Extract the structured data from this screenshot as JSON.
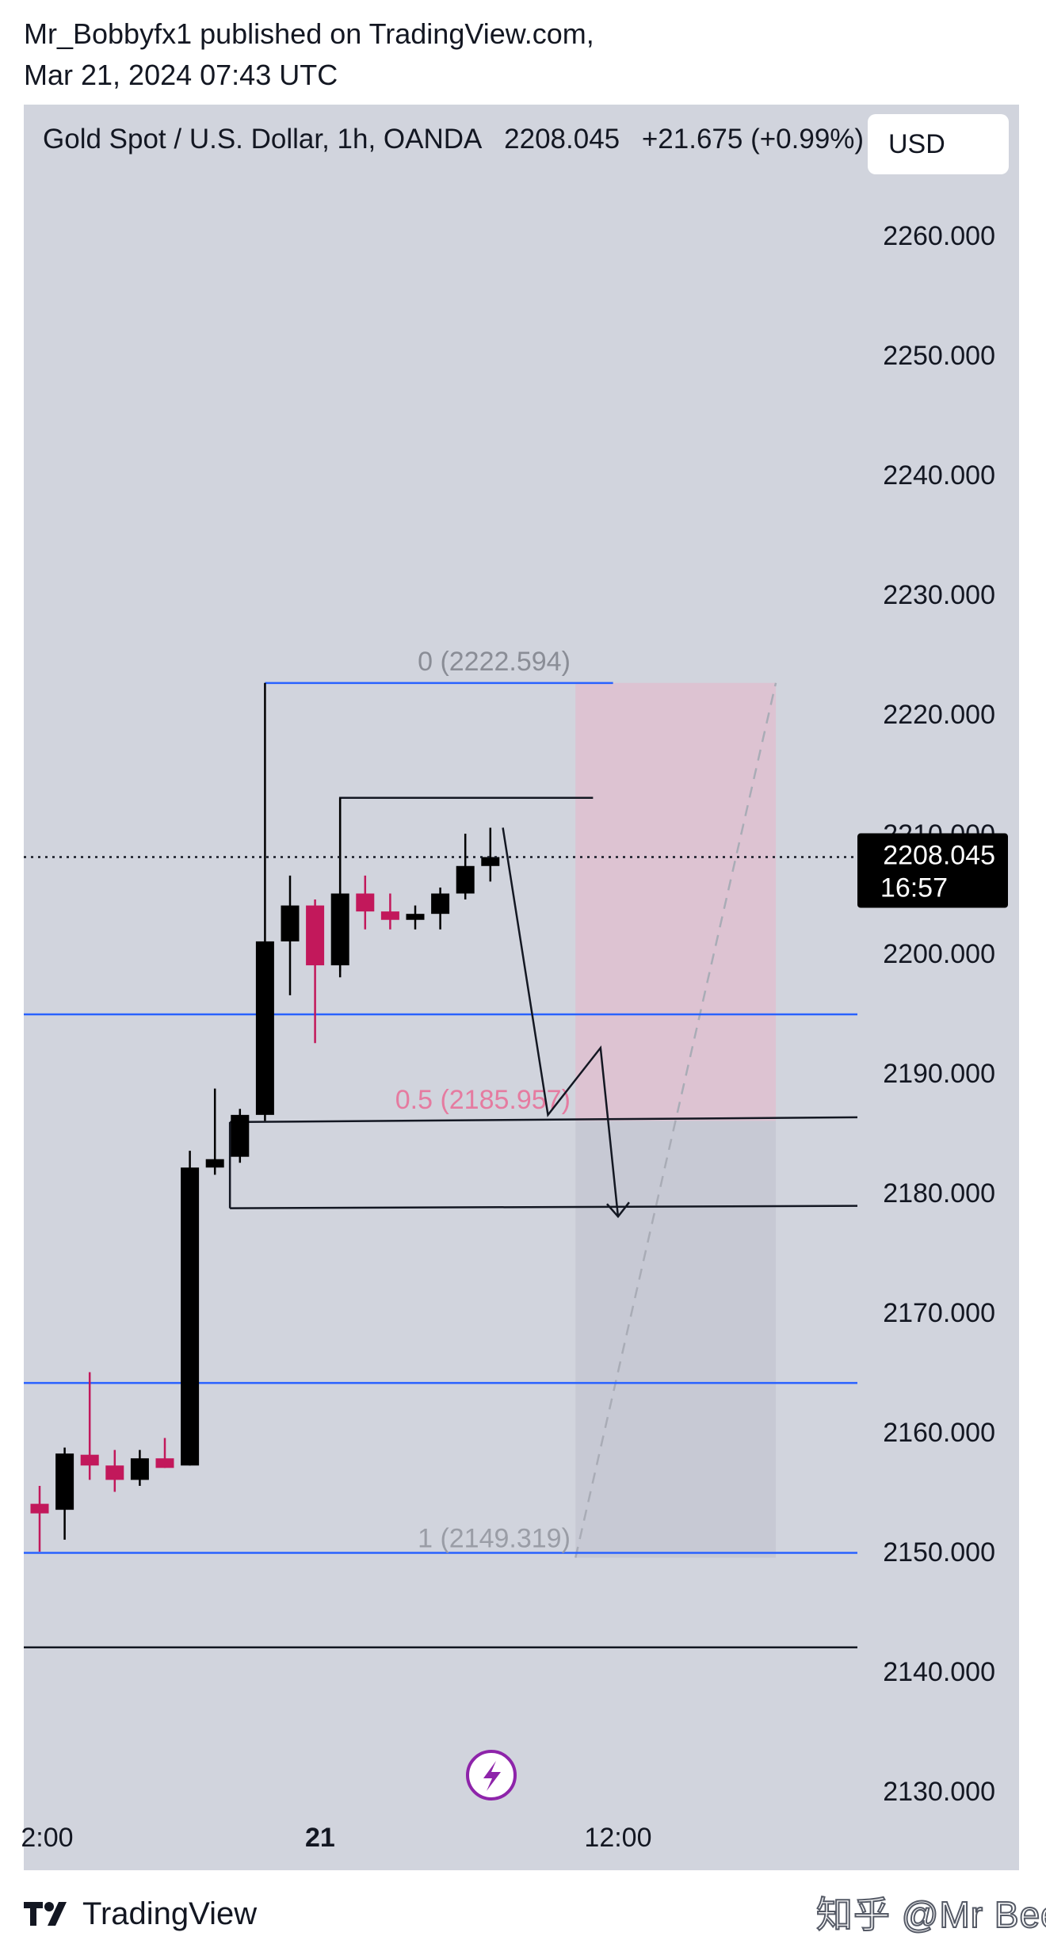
{
  "publication": {
    "line1": "Mr_Bobbyfx1 published on TradingView.com,",
    "line2": "Mar 21, 2024 07:43 UTC"
  },
  "header": {
    "symbol": "Gold Spot / U.S. Dollar, 1h, OANDA",
    "price": "2208.045",
    "change": "+21.675 (+0.99%)",
    "currency": "USD"
  },
  "colors": {
    "background": "#d1d4dd",
    "bull": "#000000",
    "bear": "#c2185b",
    "level_line": "#2962ff",
    "sell_zone": "#e8b4c8",
    "target_zone": "#c3c6d0"
  },
  "chart_data": {
    "type": "candlestick",
    "symbol": "Gold Spot / U.S. Dollar",
    "timeframe": "1h",
    "ylim": [
      2125,
      2267
    ],
    "y_ticks": [
      2130,
      2140,
      2150,
      2160,
      2170,
      2180,
      2190,
      2200,
      2210,
      2220,
      2230,
      2240,
      2250,
      2260
    ],
    "y_tick_labels": [
      "2130.000",
      "2140.000",
      "2150.000",
      "2160.000",
      "2170.000",
      "2180.000",
      "2190.000",
      "2200.000",
      "2210.000",
      "2220.000",
      "2230.000",
      "2240.000",
      "2250.000",
      "2260.000"
    ],
    "x_tick_labels": [
      {
        "label": "2:00",
        "bar": 0.3
      },
      {
        "label": "21",
        "bar": 11.2,
        "bold": true
      },
      {
        "label": "12:00",
        "bar": 23.1
      }
    ],
    "candles": [
      {
        "o": 2154.0,
        "h": 2155.5,
        "l": 2150.0,
        "c": 2153.2
      },
      {
        "o": 2153.5,
        "h": 2158.7,
        "l": 2151.0,
        "c": 2158.2
      },
      {
        "o": 2158.1,
        "h": 2165.0,
        "l": 2156.0,
        "c": 2157.2
      },
      {
        "o": 2157.2,
        "h": 2158.5,
        "l": 2155.0,
        "c": 2156.0
      },
      {
        "o": 2156.0,
        "h": 2158.5,
        "l": 2155.5,
        "c": 2157.8
      },
      {
        "o": 2157.8,
        "h": 2159.5,
        "l": 2157.0,
        "c": 2157.0
      },
      {
        "o": 2157.2,
        "h": 2183.5,
        "l": 2157.2,
        "c": 2182.1
      },
      {
        "o": 2182.1,
        "h": 2188.7,
        "l": 2181.5,
        "c": 2182.8
      },
      {
        "o": 2183.0,
        "h": 2187.0,
        "l": 2182.5,
        "c": 2186.5
      },
      {
        "o": 2186.5,
        "h": 2222.6,
        "l": 2186.0,
        "c": 2201.0
      },
      {
        "o": 2201.0,
        "h": 2206.5,
        "l": 2196.5,
        "c": 2204.0
      },
      {
        "o": 2204.0,
        "h": 2204.5,
        "l": 2192.5,
        "c": 2199.0
      },
      {
        "o": 2199.0,
        "h": 2213.0,
        "l": 2198.0,
        "c": 2205.0
      },
      {
        "o": 2205.0,
        "h": 2206.5,
        "l": 2202.0,
        "c": 2203.5
      },
      {
        "o": 2203.5,
        "h": 2205.0,
        "l": 2202.0,
        "c": 2202.8
      },
      {
        "o": 2202.8,
        "h": 2204.0,
        "l": 2202.0,
        "c": 2203.3
      },
      {
        "o": 2203.3,
        "h": 2205.5,
        "l": 2202.0,
        "c": 2205.0
      },
      {
        "o": 2205.0,
        "h": 2210.0,
        "l": 2204.5,
        "c": 2207.3
      },
      {
        "o": 2207.3,
        "h": 2210.5,
        "l": 2206.0,
        "c": 2208.045
      }
    ],
    "last_price": {
      "value": 2208.045,
      "label": "2208.045",
      "countdown": "16:57"
    },
    "horizontal_lines": [
      {
        "price": 2194.9,
        "color": "blue"
      },
      {
        "price": 2164.1,
        "color": "blue"
      },
      {
        "price": 2149.9,
        "color": "blue"
      },
      {
        "price": 2142.0,
        "color": "black"
      }
    ],
    "fibonacci": {
      "levels": [
        {
          "ratio": "0",
          "price": 2222.594,
          "label": "0 (2222.594)"
        },
        {
          "ratio": "0.5",
          "price": 2185.957,
          "label": "0.5 (2185.957)"
        },
        {
          "ratio": "1",
          "price": 2149.319,
          "label": "1 (2149.319)"
        }
      ]
    },
    "drawings": {
      "high_lines": [
        {
          "from_bar": 9,
          "price": 2222.6,
          "to_bar": 22.9
        },
        {
          "from_bar": 12,
          "price": 2213.0,
          "to_bar": 22.1
        }
      ],
      "range_lines": [
        {
          "from_bar": 7.6,
          "price_start": 2185.9,
          "price_end": 2186.3
        },
        {
          "from_bar": 7.6,
          "price_start": 2178.7,
          "price_end": 2178.9
        }
      ],
      "projected_path": [
        {
          "bar": 18.5,
          "price": 2210.5
        },
        {
          "bar": 20.3,
          "price": 2186.5
        },
        {
          "bar": 22.4,
          "price": 2192.1
        },
        {
          "bar": 23.1,
          "price": 2178.0
        }
      ],
      "sell_zone": {
        "bar_from": 21.4,
        "bar_to": 29.4,
        "price_top": 2222.6,
        "price_bottom": 2186.0
      },
      "target_zone": {
        "bar_from": 21.4,
        "bar_to": 29.4,
        "price_top": 2186.0,
        "price_bottom": 2149.5
      },
      "diagonal": {
        "bar_from": 21.4,
        "price_from": 2149.5,
        "bar_to": 29.4,
        "price_to": 2222.6
      }
    }
  },
  "footer": {
    "brand": "TradingView",
    "watermark": "知乎 @Mr Been"
  }
}
